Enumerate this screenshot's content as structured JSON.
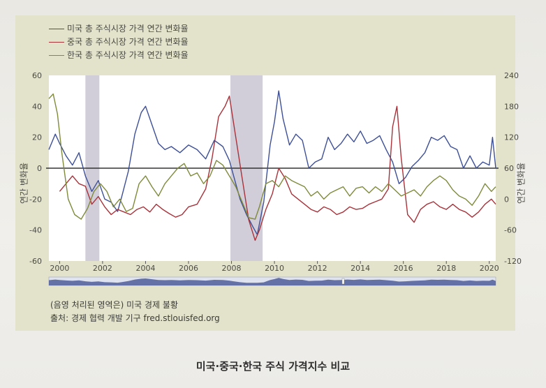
{
  "legend": [
    {
      "label": "미국 총 주식시장 가격 연간 변화율",
      "color": "#3d4f96"
    },
    {
      "label": "중국 총 주식시장 가격 연간 변화율",
      "color": "#a8323a"
    },
    {
      "label": "한국 총 주식시장 가격 연간 변화율",
      "color": "#7f8a3a"
    }
  ],
  "notes": {
    "recession": "(음영 처리된 영역은) 미국 경제 불황",
    "source": "출처: 경제 협력 개발 기구 fred.stlouisfed.org"
  },
  "caption": "미국·중국·한국 주식 가격지수 비교",
  "chart_data": {
    "type": "line",
    "x_tick_labels": [
      "2000",
      "2002",
      "2004",
      "2006",
      "2008",
      "2010",
      "2012",
      "2014",
      "2016",
      "2018",
      "2020"
    ],
    "xlim": [
      1999.5,
      2020.3
    ],
    "left_axis": {
      "label": "연간 변화율",
      "ylim": [
        -60,
        60
      ],
      "ticks": [
        "60",
        "40",
        "20",
        "0",
        "-20",
        "-40",
        "-60"
      ]
    },
    "right_axis": {
      "label": "연간 변화율",
      "ylim": [
        -120,
        240
      ],
      "ticks": [
        "240",
        "180",
        "120",
        "60",
        "0",
        "-60",
        "-120"
      ]
    },
    "zero_line": 0,
    "recessions": [
      [
        2001.2,
        2001.85
      ],
      [
        2007.95,
        2009.45
      ]
    ],
    "series": [
      {
        "name": "미국 총 주식시장 가격 연간 변화율",
        "axis": "left",
        "color": "#3d4f96",
        "x": [
          1999.5,
          1999.8,
          2000.0,
          2000.3,
          2000.6,
          2000.9,
          2001.2,
          2001.5,
          2001.8,
          2002.1,
          2002.4,
          2002.7,
          2002.9,
          2003.2,
          2003.5,
          2003.8,
          2004.0,
          2004.3,
          2004.6,
          2004.9,
          2005.2,
          2005.6,
          2006.0,
          2006.4,
          2006.8,
          2007.2,
          2007.6,
          2007.9,
          2008.1,
          2008.4,
          2008.7,
          2009.0,
          2009.2,
          2009.5,
          2009.8,
          2010.0,
          2010.2,
          2010.4,
          2010.7,
          2011.0,
          2011.3,
          2011.6,
          2011.9,
          2012.2,
          2012.5,
          2012.8,
          2013.1,
          2013.4,
          2013.7,
          2014.0,
          2014.3,
          2014.6,
          2014.9,
          2015.2,
          2015.5,
          2015.8,
          2016.1,
          2016.4,
          2016.7,
          2017.0,
          2017.3,
          2017.6,
          2017.9,
          2018.2,
          2018.5,
          2018.8,
          2019.1,
          2019.4,
          2019.7,
          2020.0,
          2020.15,
          2020.3
        ],
        "y": [
          12,
          22,
          16,
          8,
          2,
          10,
          -5,
          -15,
          -8,
          -20,
          -22,
          -28,
          -18,
          -2,
          22,
          36,
          40,
          28,
          16,
          12,
          14,
          10,
          15,
          12,
          6,
          18,
          14,
          5,
          -5,
          -20,
          -30,
          -38,
          -43,
          -22,
          15,
          30,
          50,
          32,
          15,
          22,
          18,
          0,
          4,
          6,
          20,
          12,
          16,
          22,
          17,
          24,
          16,
          18,
          21,
          12,
          4,
          -10,
          -6,
          1,
          5,
          10,
          20,
          18,
          21,
          14,
          12,
          0,
          8,
          0,
          4,
          2,
          20,
          0
        ]
      },
      {
        "name": "중국 총 주식시장 가격 연간 변화율",
        "axis": "right",
        "color": "#a8323a",
        "x": [
          2000.0,
          2000.3,
          2000.6,
          2000.9,
          2001.2,
          2001.5,
          2001.8,
          2002.1,
          2002.4,
          2002.7,
          2003.0,
          2003.3,
          2003.6,
          2003.9,
          2004.2,
          2004.5,
          2004.8,
          2005.1,
          2005.4,
          2005.7,
          2006.0,
          2006.4,
          2006.8,
          2007.1,
          2007.4,
          2007.7,
          2007.9,
          2008.2,
          2008.5,
          2008.8,
          2009.1,
          2009.3,
          2009.6,
          2009.9,
          2010.2,
          2010.5,
          2010.8,
          2011.1,
          2011.4,
          2011.7,
          2012.0,
          2012.3,
          2012.6,
          2012.9,
          2013.2,
          2013.5,
          2013.8,
          2014.1,
          2014.4,
          2014.7,
          2015.0,
          2015.3,
          2015.5,
          2015.7,
          2015.9,
          2016.2,
          2016.5,
          2016.8,
          2017.1,
          2017.4,
          2017.7,
          2018.0,
          2018.3,
          2018.6,
          2018.9,
          2019.2,
          2019.5,
          2019.8,
          2020.1,
          2020.3
        ],
        "y": [
          15,
          30,
          45,
          30,
          25,
          -10,
          5,
          -15,
          -30,
          -20,
          -25,
          -30,
          -20,
          -15,
          -25,
          -10,
          -20,
          -28,
          -35,
          -30,
          -15,
          -10,
          20,
          80,
          160,
          180,
          200,
          120,
          40,
          -40,
          -80,
          -60,
          -20,
          10,
          60,
          40,
          10,
          0,
          -10,
          -20,
          -25,
          -15,
          -20,
          -30,
          -25,
          -15,
          -20,
          -18,
          -10,
          -5,
          0,
          20,
          140,
          180,
          80,
          -30,
          -45,
          -20,
          -10,
          -5,
          -15,
          -20,
          -10,
          -20,
          -25,
          -35,
          -25,
          -10,
          0,
          -10
        ]
      },
      {
        "name": "한국 총 주식시장 가격 연간 변화율",
        "axis": "left",
        "color": "#7f8a3a",
        "x": [
          1999.5,
          1999.7,
          1999.9,
          2000.1,
          2000.4,
          2000.7,
          2001.0,
          2001.3,
          2001.6,
          2001.9,
          2002.2,
          2002.5,
          2002.8,
          2003.1,
          2003.4,
          2003.7,
          2004.0,
          2004.3,
          2004.6,
          2004.9,
          2005.2,
          2005.5,
          2005.8,
          2006.1,
          2006.4,
          2006.7,
          2007.0,
          2007.3,
          2007.6,
          2007.9,
          2008.2,
          2008.5,
          2008.8,
          2009.1,
          2009.3,
          2009.6,
          2009.9,
          2010.2,
          2010.5,
          2010.8,
          2011.1,
          2011.4,
          2011.7,
          2012.0,
          2012.3,
          2012.6,
          2012.9,
          2013.2,
          2013.5,
          2013.8,
          2014.1,
          2014.4,
          2014.7,
          2015.0,
          2015.3,
          2015.6,
          2015.9,
          2016.2,
          2016.5,
          2016.8,
          2017.1,
          2017.4,
          2017.7,
          2018.0,
          2018.3,
          2018.6,
          2018.9,
          2019.2,
          2019.5,
          2019.8,
          2020.1,
          2020.3
        ],
        "y": [
          45,
          48,
          35,
          10,
          -20,
          -30,
          -33,
          -26,
          -15,
          -10,
          -15,
          -25,
          -20,
          -28,
          -26,
          -10,
          -5,
          -12,
          -18,
          -10,
          -5,
          0,
          3,
          -5,
          -3,
          -10,
          -5,
          5,
          2,
          -5,
          -12,
          -22,
          -32,
          -33,
          -25,
          -10,
          -8,
          -12,
          -5,
          -8,
          -10,
          -12,
          -18,
          -15,
          -20,
          -16,
          -14,
          -12,
          -18,
          -13,
          -12,
          -16,
          -12,
          -15,
          -10,
          -14,
          -18,
          -16,
          -14,
          -18,
          -12,
          -8,
          -5,
          -8,
          -14,
          -18,
          -20,
          -24,
          -18,
          -10,
          -15,
          -12
        ]
      }
    ]
  }
}
